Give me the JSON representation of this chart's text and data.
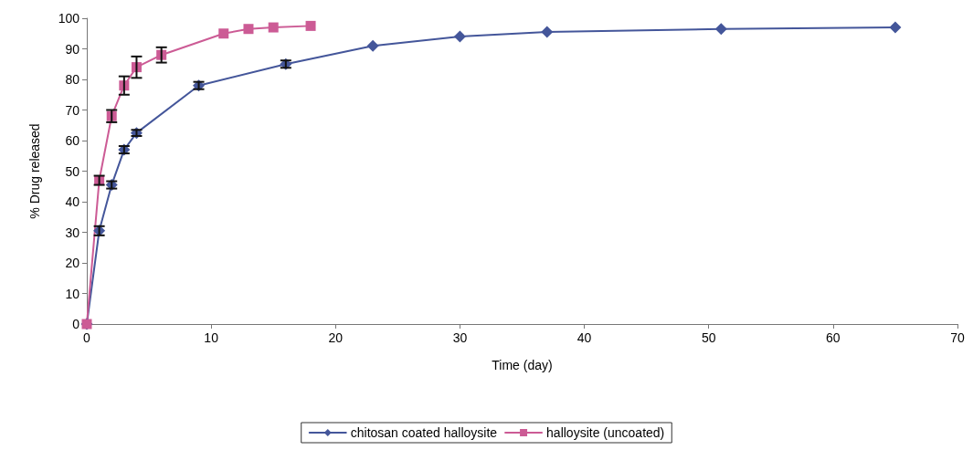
{
  "chart_data": {
    "type": "line",
    "xlabel": "Time (day)",
    "ylabel": "% Drug released",
    "xlim": [
      0,
      70
    ],
    "xticks": [
      0,
      10,
      20,
      30,
      40,
      50,
      60,
      70
    ],
    "ylim": [
      0,
      100
    ],
    "yticks": [
      0,
      10,
      20,
      30,
      40,
      50,
      60,
      70,
      80,
      90,
      100
    ],
    "grid": false,
    "legend": "bottom",
    "line_style": "solid",
    "series": [
      {
        "name": "chitosan coated halloysite",
        "color": "#44569a",
        "marker": "diamond",
        "x": [
          0,
          1,
          2,
          3,
          4,
          9,
          16,
          23,
          30,
          37,
          51,
          65
        ],
        "values": [
          0,
          30.5,
          45.5,
          57,
          62.5,
          78,
          85,
          91,
          94,
          95.5,
          96.5,
          97
        ],
        "errors": [
          null,
          1.5,
          1.2,
          1.2,
          1,
          1.2,
          1.2,
          null,
          null,
          null,
          null,
          null
        ]
      },
      {
        "name": "halloysite (uncoated)",
        "color": "#cc5b95",
        "marker": "square",
        "x": [
          0,
          1,
          2,
          3,
          4,
          6,
          11,
          13,
          15,
          18
        ],
        "values": [
          0,
          47,
          68,
          78,
          84,
          88,
          95,
          96.5,
          97,
          97.5
        ],
        "errors": [
          null,
          1.5,
          2,
          3,
          3.5,
          2.5,
          null,
          null,
          null,
          null
        ]
      }
    ]
  }
}
